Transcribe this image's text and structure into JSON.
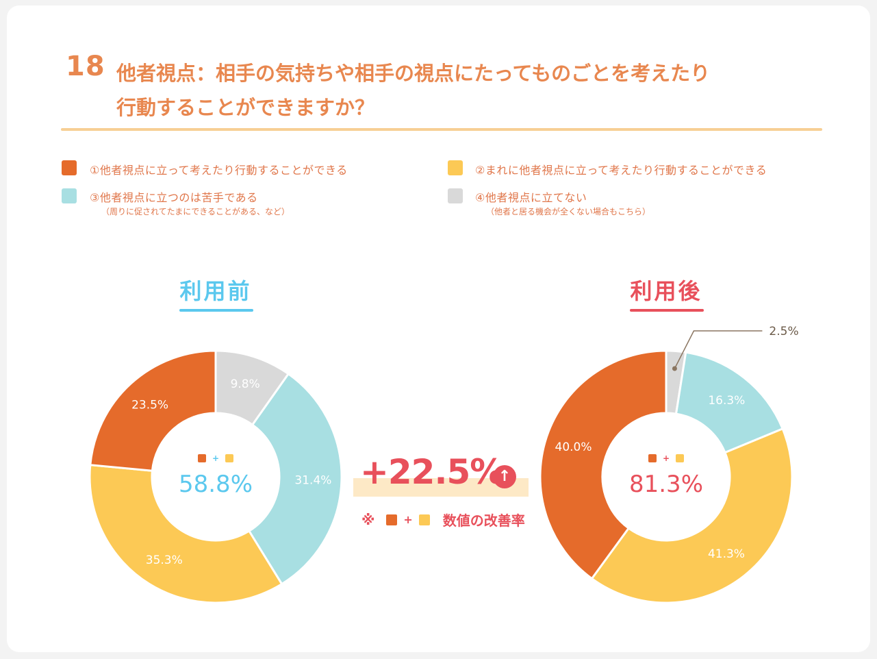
{
  "question": {
    "number": "18",
    "line1": "他者視点：相手の気持ちや相手の視点にたってものごとを考えたり",
    "line2": "行動することができますか？"
  },
  "legend": [
    {
      "label": "①他者視点に立って考えたり行動することができる",
      "note": "",
      "color": "#e56b2b"
    },
    {
      "label": "②まれに他者視点に立って考えたり行動することができる",
      "note": "",
      "color": "#fcc955"
    },
    {
      "label": "③他者視点に立つのは苦手である",
      "note": "（周りに促されてたまにできることがある、など）",
      "color": "#a8dfe2"
    },
    {
      "label": "④他者視点に立てない",
      "note": "（他者と居る機会が全くない場合もこちら）",
      "color": "#d9d9d9"
    }
  ],
  "chart_data": [
    {
      "type": "pie",
      "title": "利用前",
      "title_color": "#5bc8ee",
      "center_value": "58.8%",
      "center_plus": "+",
      "slices": [
        {
          "category": "①",
          "value": 23.5,
          "label": "23.5%",
          "color": "#e56b2b"
        },
        {
          "category": "②",
          "value": 35.3,
          "label": "35.3%",
          "color": "#fcc955"
        },
        {
          "category": "③",
          "value": 31.4,
          "label": "31.4%",
          "color": "#a8dfe2"
        },
        {
          "category": "④",
          "value": 9.8,
          "label": "9.8%",
          "color": "#d9d9d9"
        }
      ]
    },
    {
      "type": "pie",
      "title": "利用後",
      "title_color": "#e8505b",
      "center_value": "81.3%",
      "center_plus": "+",
      "slices": [
        {
          "category": "①",
          "value": 40.0,
          "label": "40.0%",
          "color": "#e56b2b"
        },
        {
          "category": "②",
          "value": 41.3,
          "label": "41.3%",
          "color": "#fcc955"
        },
        {
          "category": "③",
          "value": 16.3,
          "label": "16.3%",
          "color": "#a8dfe2"
        },
        {
          "category": "④",
          "value": 2.5,
          "label": "2.5%",
          "color": "#d9d9d9"
        }
      ]
    }
  ],
  "improvement": {
    "value": "+22.5%",
    "arrow": "↑",
    "note_prefix": "※",
    "note_plus": "+",
    "note_suffix": "数値の改善率"
  }
}
